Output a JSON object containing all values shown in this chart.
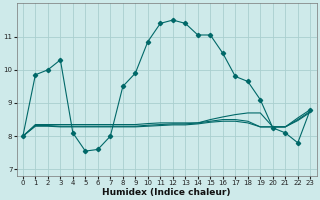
{
  "xlabel": "Humidex (Indice chaleur)",
  "bg_color": "#ceeaea",
  "grid_color": "#aacfcf",
  "line_color": "#006868",
  "xlim": [
    -0.5,
    23.5
  ],
  "ylim": [
    6.8,
    12.0
  ],
  "yticks": [
    7,
    8,
    9,
    10,
    11
  ],
  "xticks": [
    0,
    1,
    2,
    3,
    4,
    5,
    6,
    7,
    8,
    9,
    10,
    11,
    12,
    13,
    14,
    15,
    16,
    17,
    18,
    19,
    20,
    21,
    22,
    23
  ],
  "series1": [
    8.0,
    9.85,
    10.0,
    10.3,
    8.1,
    7.55,
    7.6,
    8.0,
    9.5,
    9.9,
    10.85,
    11.4,
    11.5,
    11.4,
    11.05,
    11.05,
    10.5,
    9.8,
    9.65,
    9.1,
    8.25,
    8.1,
    7.8,
    8.8
  ],
  "series2": [
    8.0,
    8.35,
    8.35,
    8.35,
    8.35,
    8.35,
    8.35,
    8.35,
    8.35,
    8.35,
    8.38,
    8.4,
    8.4,
    8.4,
    8.4,
    8.5,
    8.58,
    8.65,
    8.7,
    8.7,
    8.28,
    8.28,
    8.55,
    8.8
  ],
  "series3": [
    8.0,
    8.32,
    8.32,
    8.3,
    8.3,
    8.3,
    8.3,
    8.3,
    8.3,
    8.3,
    8.33,
    8.35,
    8.37,
    8.37,
    8.4,
    8.45,
    8.5,
    8.5,
    8.45,
    8.28,
    8.28,
    8.28,
    8.5,
    8.75
  ],
  "series4": [
    8.0,
    8.3,
    8.3,
    8.28,
    8.28,
    8.28,
    8.28,
    8.28,
    8.28,
    8.28,
    8.3,
    8.32,
    8.34,
    8.34,
    8.37,
    8.42,
    8.45,
    8.45,
    8.4,
    8.28,
    8.28,
    8.28,
    8.47,
    8.72
  ]
}
